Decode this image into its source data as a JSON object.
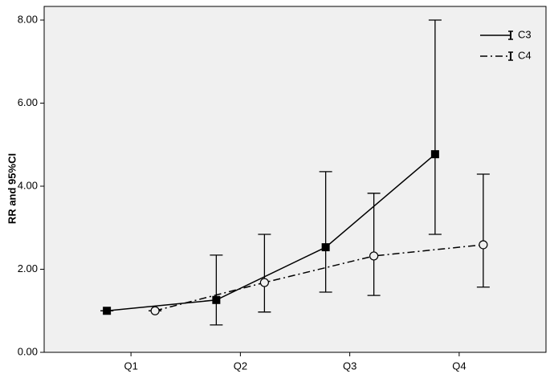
{
  "chart_data": {
    "type": "line",
    "y_label": "RR and 95%CI",
    "categories": [
      "Q1",
      "Q2",
      "Q3",
      "Q4"
    ],
    "series": [
      {
        "name": "C3",
        "color": "#000000",
        "line_style": "solid",
        "marker": "square",
        "values": [
          1.0,
          1.26,
          2.53,
          4.77
        ],
        "lower": [
          1.0,
          0.66,
          1.45,
          2.84
        ],
        "upper": [
          1.0,
          2.34,
          4.35,
          8.0
        ]
      },
      {
        "name": "C4",
        "color": "#000000",
        "line_style": "dashdot",
        "marker": "circle",
        "values": [
          1.0,
          1.68,
          2.32,
          2.59
        ],
        "lower": [
          1.0,
          0.97,
          1.37,
          1.57
        ],
        "upper": [
          1.0,
          2.84,
          3.83,
          4.29
        ]
      }
    ],
    "ylim": [
      0,
      8
    ],
    "yticks": [
      {
        "value": 0,
        "label": "0.00"
      },
      {
        "value": 2,
        "label": "2.00"
      },
      {
        "value": 4,
        "label": "4.00"
      },
      {
        "value": 6,
        "label": "6.00"
      },
      {
        "value": 8,
        "label": "8.00"
      }
    ],
    "legend": "top-right"
  }
}
